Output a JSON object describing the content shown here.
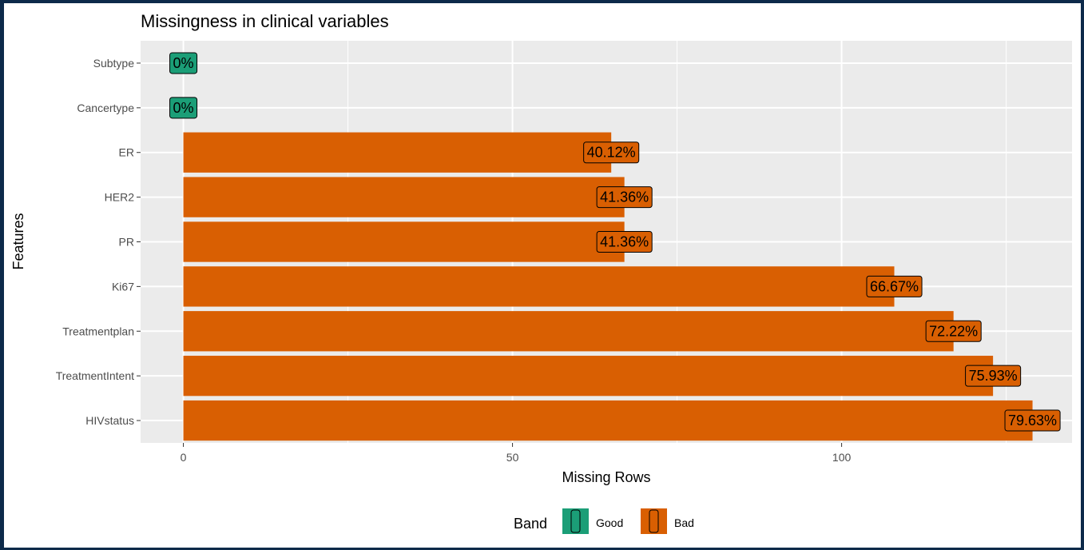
{
  "chart_data": {
    "type": "bar",
    "orientation": "horizontal",
    "title": "Missingness in clinical variables",
    "xlabel": "Missing Rows",
    "ylabel": "Features",
    "xlim": [
      -6.5,
      135
    ],
    "xticks": [
      0,
      50,
      100
    ],
    "grid": true,
    "categories": [
      "Subtype",
      "Cancertype",
      "ER",
      "HER2",
      "PR",
      "Ki67",
      "Treatmentplan",
      "TreatmentIntent",
      "HIVstatus"
    ],
    "values": [
      0,
      0,
      65,
      67,
      67,
      108,
      117,
      123,
      129
    ],
    "labels": [
      "0%",
      "0%",
      "40.12%",
      "41.36%",
      "41.36%",
      "66.67%",
      "72.22%",
      "75.93%",
      "79.63%"
    ],
    "band": [
      "Good",
      "Good",
      "Bad",
      "Bad",
      "Bad",
      "Bad",
      "Bad",
      "Bad",
      "Bad"
    ],
    "legend": {
      "title": "Band",
      "position": "bottom",
      "entries": [
        {
          "name": "Good",
          "color": "#1b9e77"
        },
        {
          "name": "Bad",
          "color": "#d95f02"
        }
      ]
    }
  }
}
